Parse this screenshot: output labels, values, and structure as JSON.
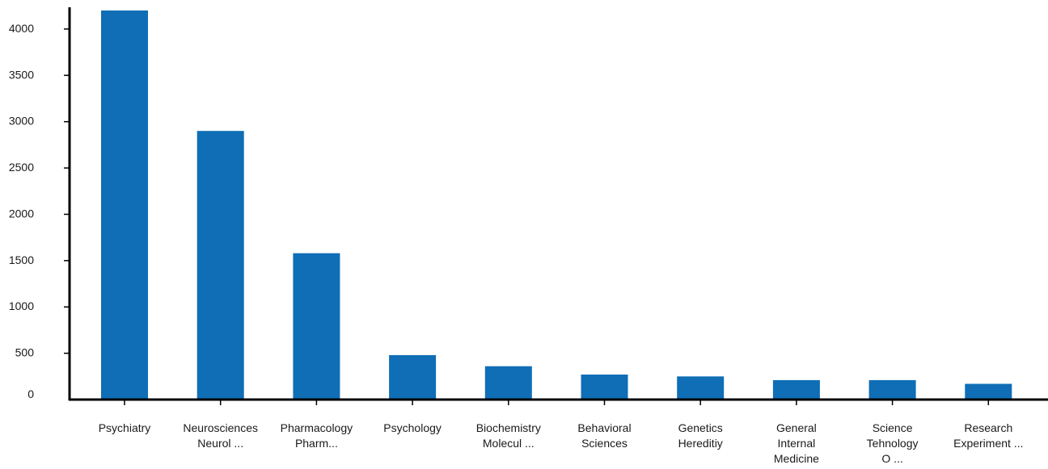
{
  "chart_data": {
    "type": "bar",
    "categories": [
      [
        "Psychiatry"
      ],
      [
        "Neurosciences",
        "Neurol ..."
      ],
      [
        "Pharmacology",
        "Pharm..."
      ],
      [
        "Psychology"
      ],
      [
        "Biochemistry",
        "Molecul ..."
      ],
      [
        "Behavioral",
        "Sciences"
      ],
      [
        "Genetics",
        "Hereditiy"
      ],
      [
        "General",
        "Internal",
        "Medicine"
      ],
      [
        "Science",
        "Tehnology",
        "O ..."
      ],
      [
        "Research",
        "Experiment ..."
      ]
    ],
    "values": [
      4200,
      2900,
      1580,
      480,
      360,
      270,
      250,
      210,
      210,
      170
    ],
    "ylim": [
      0,
      4200
    ],
    "yticks": [
      0,
      500,
      1000,
      1500,
      2000,
      2500,
      3000,
      3500,
      4000
    ],
    "title": "",
    "xlabel": "",
    "ylabel": "",
    "grid": false,
    "legend": "none",
    "bar_color": "#0f6eb5",
    "axis_color": "#000000"
  }
}
